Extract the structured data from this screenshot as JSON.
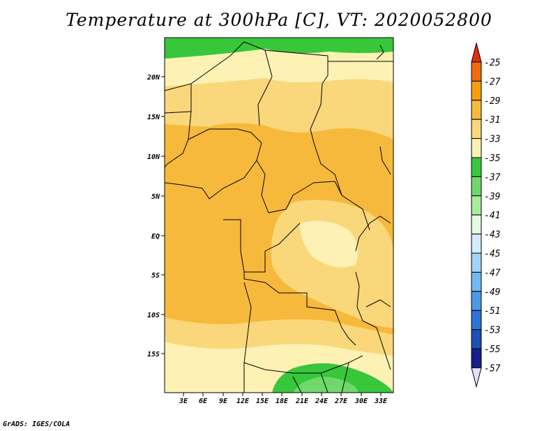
{
  "title": "Temperature at 300hPa [C], VT: 2020052800",
  "credit": "GrADS: IGES/COLA",
  "map": {
    "lat_labels": [
      "20N",
      "15N",
      "10N",
      "5N",
      "EQ",
      "5S",
      "10S",
      "15S"
    ],
    "lon_labels": [
      "3E",
      "6E",
      "9E",
      "12E",
      "15E",
      "18E",
      "21E",
      "24E",
      "27E",
      "30E",
      "33E"
    ]
  },
  "colorbar": {
    "labels": [
      "-25",
      "-27",
      "-29",
      "-31",
      "-33",
      "-35",
      "-37",
      "-39",
      "-41",
      "-43",
      "-45",
      "-47",
      "-49",
      "-51",
      "-53",
      "-55",
      "-57"
    ],
    "colors": [
      "#e02e0c",
      "#f26b0a",
      "#f59f0c",
      "#f7b93c",
      "#fad77b",
      "#fdf1b4",
      "#38c63b",
      "#6ed86a",
      "#a6ec9c",
      "#e3fbe0",
      "#d3ecfb",
      "#a3d3f6",
      "#74b8f0",
      "#4a9ae6",
      "#2c73d6",
      "#1e4fb4",
      "#15208d",
      "#e4e0f8"
    ]
  }
}
